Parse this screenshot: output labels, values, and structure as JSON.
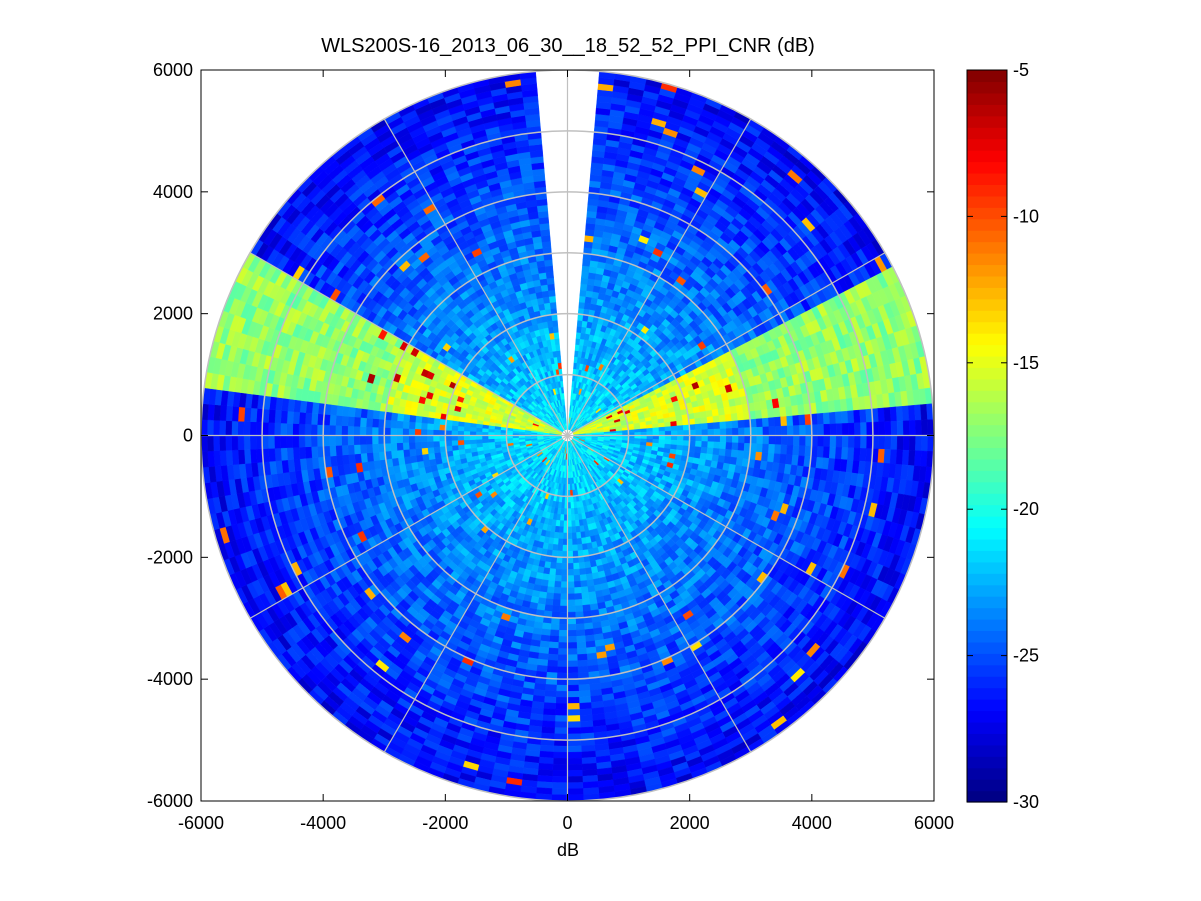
{
  "chart_data": {
    "type": "heatmap",
    "subtype": "polar_ppi",
    "title": "WLS200S-16_2013_06_30__18_52_52_PPI_CNR (dB)",
    "xlabel": "dB",
    "ylabel": "",
    "xlim": [
      -6000,
      6000
    ],
    "ylim": [
      -6000,
      6000
    ],
    "xticks": [
      "-6000",
      "-4000",
      "-2000",
      "0",
      "2000",
      "4000",
      "6000"
    ],
    "yticks": [
      "6000",
      "4000",
      "2000",
      "0",
      "-2000",
      "-4000",
      "-6000"
    ],
    "max_range": 6000,
    "range_rings": [
      1000,
      2000,
      3000,
      4000,
      5000,
      6000
    ],
    "spoke_angles_deg": [
      0,
      30,
      60,
      90,
      120,
      150,
      180,
      210,
      240,
      270,
      300,
      330
    ],
    "missing_sector_deg": [
      355,
      5
    ],
    "colorbar": {
      "min": -30,
      "max": -5,
      "ticks": [
        "-5",
        "-10",
        "-15",
        "-20",
        "-25",
        "-30"
      ],
      "colormap": "jet"
    },
    "bright_sectors": [
      {
        "from_deg": 62,
        "to_deg": 84,
        "value": -17
      },
      {
        "from_deg": 277,
        "to_deg": 300,
        "value": -17
      }
    ],
    "colors": {
      "grid": "#c0c0c0",
      "axis": "#000000",
      "background": "#ffffff"
    }
  }
}
